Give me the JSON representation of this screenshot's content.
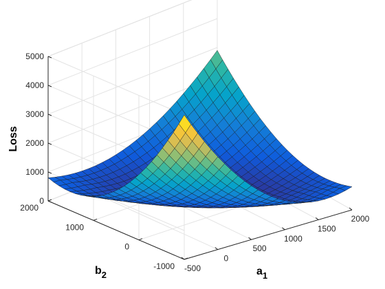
{
  "chart_data": {
    "type": "surface",
    "title": "",
    "zlabel": "Loss",
    "xlabel": {
      "base": "a",
      "sub": "1"
    },
    "ylabel": {
      "base": "b",
      "sub": "2"
    },
    "z_ticks": [
      "0",
      "1000",
      "2000",
      "3000",
      "4000",
      "5000"
    ],
    "x_ticks": [
      "-500",
      "0",
      "500",
      "1000",
      "1500",
      "2000"
    ],
    "y_ticks": [
      "2000",
      "1000",
      "0",
      "-1000"
    ],
    "x_range": [
      -500,
      2000
    ],
    "y_range": [
      -1000,
      2000
    ],
    "z_range": [
      0,
      5000
    ],
    "grid": true,
    "colormap": "parula",
    "colormap_stops": [
      "#352a87",
      "#0f5cdd",
      "#1481d6",
      "#06a4ca",
      "#2eb7a4",
      "#87bf77",
      "#d1bb59",
      "#fec832",
      "#f9fb0e"
    ],
    "surface": {
      "corner_values": {
        "a_min_b_max": 1050,
        "a_min_b_min": 5000,
        "a_max_b_max": 2900,
        "a_max_b_min": 1050
      },
      "minimum_value": 0,
      "grid_lines": 25
    }
  }
}
